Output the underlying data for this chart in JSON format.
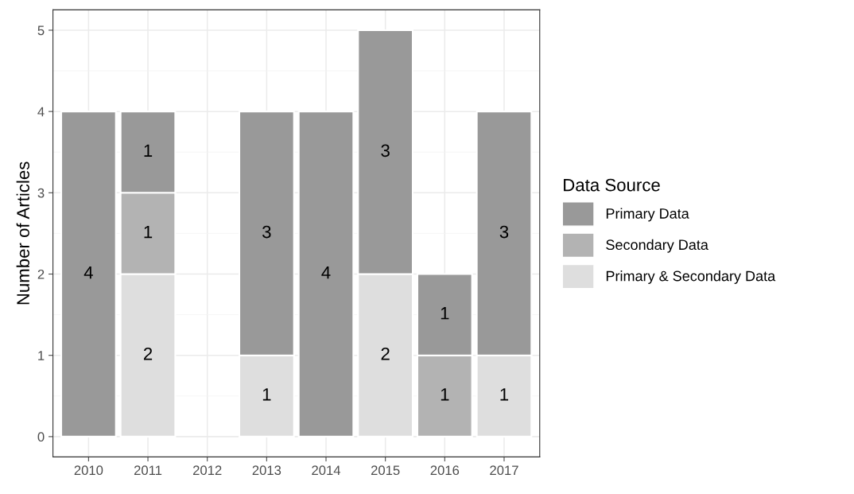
{
  "chart_data": {
    "type": "bar",
    "stacked": true,
    "ylabel": "Number of Articles",
    "legend_title": "Data Source",
    "categories": [
      "2010",
      "2011",
      "2012",
      "2013",
      "2014",
      "2015",
      "2016",
      "2017"
    ],
    "series": [
      {
        "name": "Primary & Secondary Data",
        "color": "#dedede",
        "values": [
          null,
          2,
          null,
          1,
          null,
          2,
          null,
          1
        ]
      },
      {
        "name": "Secondary Data",
        "color": "#b3b3b3",
        "values": [
          null,
          1,
          null,
          null,
          null,
          null,
          1,
          null
        ]
      },
      {
        "name": "Primary Data",
        "color": "#999999",
        "values": [
          4,
          1,
          null,
          3,
          4,
          3,
          1,
          3
        ]
      }
    ],
    "ylim": [
      -0.25,
      5.25
    ],
    "yticks": [
      0,
      1,
      2,
      3,
      4,
      5
    ],
    "grid": true,
    "legend": "right",
    "data_labels": true
  }
}
